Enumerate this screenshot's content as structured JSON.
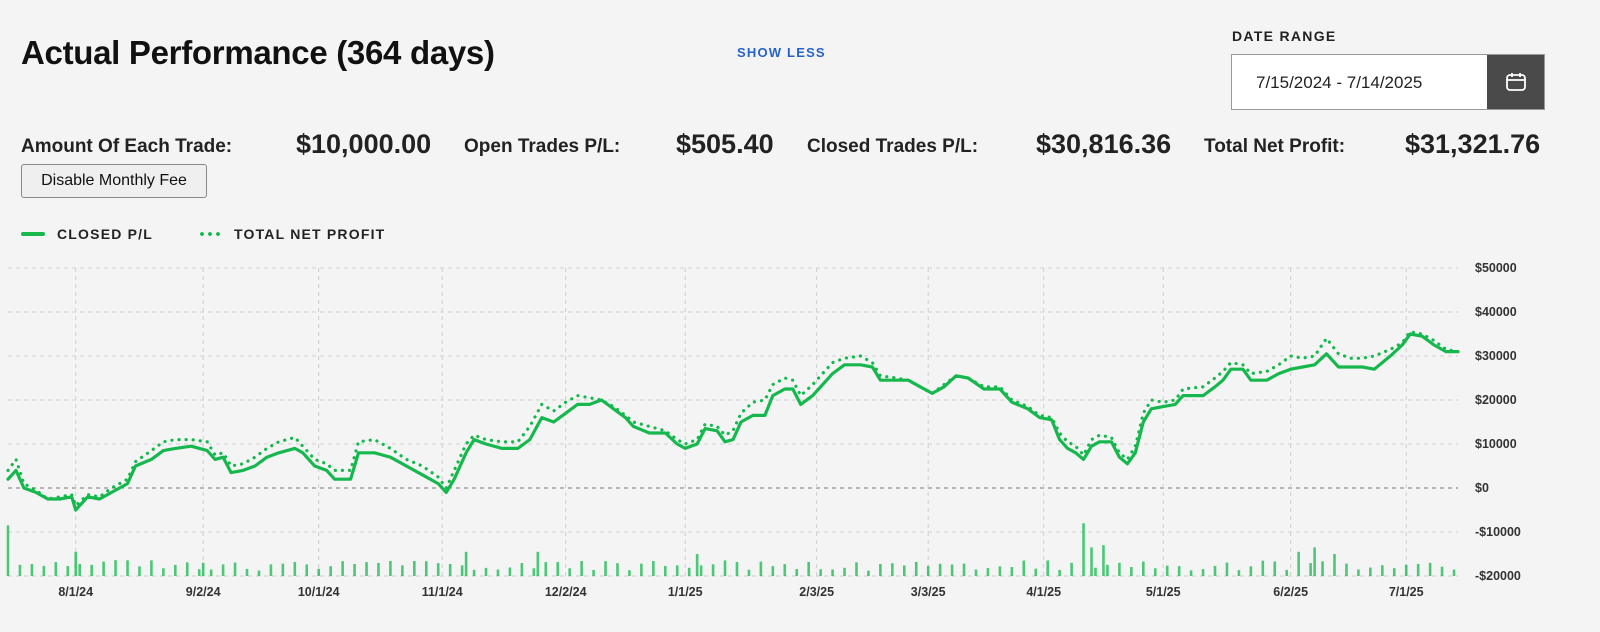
{
  "header": {
    "title": "Actual Performance (364 days)",
    "show_less": "SHOW LESS",
    "date_range_label": "DATE RANGE",
    "date_range_value": "7/15/2024 - 7/14/2025"
  },
  "stats": {
    "amount_label": "Amount Of Each Trade:",
    "amount_value": "$10,000.00",
    "open_label": "Open Trades P/L:",
    "open_value": "$505.40",
    "closed_label": "Closed Trades P/L:",
    "closed_value": "$30,816.36",
    "net_label": "Total Net Profit:",
    "net_value": "$31,321.76"
  },
  "fee_button": "Disable Monthly Fee",
  "colors": {
    "series": "#16b84e",
    "accent_blue": "#2563c9"
  },
  "chart_data": {
    "type": "line",
    "legend": [
      "CLOSED P/L",
      "TOTAL NET PROFIT"
    ],
    "legend_position": "top-left",
    "grid": true,
    "ylim": [
      -20000,
      50000
    ],
    "yticks": [
      50000,
      40000,
      30000,
      20000,
      10000,
      0,
      -10000,
      -20000
    ],
    "ytick_labels": [
      "$50000",
      "$40000",
      "$30000",
      "$20000",
      "$10000",
      "$0",
      "-$10000",
      "-$20000"
    ],
    "xlim_days": [
      0,
      364
    ],
    "xticks": [
      {
        "label": "8/1/24",
        "day": 17
      },
      {
        "label": "9/2/24",
        "day": 49
      },
      {
        "label": "10/1/24",
        "day": 78
      },
      {
        "label": "11/1/24",
        "day": 109
      },
      {
        "label": "12/2/24",
        "day": 140
      },
      {
        "label": "1/1/25",
        "day": 170
      },
      {
        "label": "2/3/25",
        "day": 203
      },
      {
        "label": "3/3/25",
        "day": 231
      },
      {
        "label": "4/1/25",
        "day": 260
      },
      {
        "label": "5/1/25",
        "day": 290
      },
      {
        "label": "6/2/25",
        "day": 322
      },
      {
        "label": "7/1/25",
        "day": 351
      }
    ],
    "series": [
      {
        "name": "CLOSED P/L",
        "style": "solid",
        "points": [
          [
            0,
            2000
          ],
          [
            2,
            4000
          ],
          [
            4,
            0
          ],
          [
            7,
            -1000
          ],
          [
            10,
            -2500
          ],
          [
            13,
            -2500
          ],
          [
            16,
            -2000
          ],
          [
            17,
            -5000
          ],
          [
            20,
            -2000
          ],
          [
            23,
            -2500
          ],
          [
            26,
            -1000
          ],
          [
            30,
            1000
          ],
          [
            32,
            5000
          ],
          [
            36,
            6500
          ],
          [
            39,
            8500
          ],
          [
            42,
            9000
          ],
          [
            46,
            9500
          ],
          [
            50,
            8500
          ],
          [
            52,
            6500
          ],
          [
            54,
            7000
          ],
          [
            56,
            3500
          ],
          [
            59,
            4000
          ],
          [
            62,
            5000
          ],
          [
            65,
            7000
          ],
          [
            68,
            8000
          ],
          [
            72,
            9000
          ],
          [
            74,
            8000
          ],
          [
            77,
            5000
          ],
          [
            80,
            4000
          ],
          [
            82,
            2000
          ],
          [
            86,
            2000
          ],
          [
            88,
            8000
          ],
          [
            92,
            8000
          ],
          [
            96,
            7000
          ],
          [
            100,
            5000
          ],
          [
            104,
            3000
          ],
          [
            108,
            1000
          ],
          [
            110,
            -1000
          ],
          [
            112,
            2000
          ],
          [
            115,
            8000
          ],
          [
            117,
            11000
          ],
          [
            120,
            10000
          ],
          [
            124,
            9000
          ],
          [
            128,
            9000
          ],
          [
            131,
            11000
          ],
          [
            134,
            16000
          ],
          [
            137,
            15000
          ],
          [
            140,
            17000
          ],
          [
            143,
            19000
          ],
          [
            146,
            19000
          ],
          [
            149,
            20000
          ],
          [
            152,
            18000
          ],
          [
            155,
            16000
          ],
          [
            157,
            14000
          ],
          [
            161,
            12500
          ],
          [
            165,
            12500
          ],
          [
            168,
            10000
          ],
          [
            170,
            9000
          ],
          [
            173,
            10000
          ],
          [
            175,
            13500
          ],
          [
            178,
            13000
          ],
          [
            180,
            10500
          ],
          [
            182,
            11000
          ],
          [
            184,
            15000
          ],
          [
            187,
            16500
          ],
          [
            190,
            16500
          ],
          [
            192,
            21000
          ],
          [
            195,
            22500
          ],
          [
            197,
            22500
          ],
          [
            199,
            19000
          ],
          [
            202,
            21000
          ],
          [
            205,
            24000
          ],
          [
            207,
            26000
          ],
          [
            210,
            28000
          ],
          [
            214,
            28000
          ],
          [
            217,
            27500
          ],
          [
            219,
            24500
          ],
          [
            223,
            24500
          ],
          [
            226,
            24500
          ],
          [
            229,
            23000
          ],
          [
            232,
            21500
          ],
          [
            235,
            23000
          ],
          [
            238,
            25500
          ],
          [
            241,
            25000
          ],
          [
            245,
            22500
          ],
          [
            249,
            22500
          ],
          [
            252,
            19500
          ],
          [
            256,
            18000
          ],
          [
            259,
            16000
          ],
          [
            262,
            15500
          ],
          [
            264,
            11000
          ],
          [
            266,
            9000
          ],
          [
            268,
            8000
          ],
          [
            270,
            6500
          ],
          [
            272,
            9500
          ],
          [
            274,
            10500
          ],
          [
            277,
            10500
          ],
          [
            279,
            7000
          ],
          [
            281,
            5500
          ],
          [
            283,
            8000
          ],
          [
            285,
            15000
          ],
          [
            287,
            18000
          ],
          [
            290,
            18500
          ],
          [
            293,
            19000
          ],
          [
            295,
            21000
          ],
          [
            300,
            21000
          ],
          [
            303,
            23000
          ],
          [
            305,
            24500
          ],
          [
            307,
            27000
          ],
          [
            310,
            27000
          ],
          [
            312,
            24500
          ],
          [
            316,
            24500
          ],
          [
            319,
            26000
          ],
          [
            322,
            27000
          ],
          [
            325,
            27500
          ],
          [
            328,
            28000
          ],
          [
            331,
            30500
          ],
          [
            334,
            27500
          ],
          [
            337,
            27500
          ],
          [
            340,
            27500
          ],
          [
            343,
            27000
          ],
          [
            347,
            30000
          ],
          [
            350,
            32500
          ],
          [
            352,
            35000
          ],
          [
            355,
            34500
          ],
          [
            358,
            32500
          ],
          [
            361,
            31000
          ],
          [
            364,
            31000
          ]
        ]
      },
      {
        "name": "TOTAL NET PROFIT",
        "style": "dotted",
        "points": [
          [
            0,
            4000
          ],
          [
            2,
            6500
          ],
          [
            4,
            1000
          ],
          [
            7,
            -500
          ],
          [
            10,
            -2500
          ],
          [
            13,
            -2000
          ],
          [
            16,
            -1500
          ],
          [
            17,
            -4000
          ],
          [
            20,
            -1500
          ],
          [
            23,
            -2000
          ],
          [
            26,
            0
          ],
          [
            30,
            2000
          ],
          [
            32,
            6000
          ],
          [
            36,
            8500
          ],
          [
            39,
            10500
          ],
          [
            42,
            11000
          ],
          [
            46,
            11000
          ],
          [
            50,
            10500
          ],
          [
            52,
            7500
          ],
          [
            54,
            8000
          ],
          [
            56,
            5000
          ],
          [
            59,
            5500
          ],
          [
            62,
            7000
          ],
          [
            65,
            9000
          ],
          [
            68,
            10500
          ],
          [
            72,
            11500
          ],
          [
            74,
            9500
          ],
          [
            77,
            6500
          ],
          [
            80,
            5500
          ],
          [
            82,
            4000
          ],
          [
            86,
            4000
          ],
          [
            88,
            10500
          ],
          [
            92,
            11000
          ],
          [
            96,
            9000
          ],
          [
            100,
            6500
          ],
          [
            104,
            5000
          ],
          [
            108,
            2500
          ],
          [
            110,
            0
          ],
          [
            112,
            4000
          ],
          [
            115,
            10000
          ],
          [
            117,
            12000
          ],
          [
            120,
            11000
          ],
          [
            124,
            10500
          ],
          [
            128,
            10500
          ],
          [
            131,
            14000
          ],
          [
            134,
            19000
          ],
          [
            137,
            17500
          ],
          [
            140,
            19500
          ],
          [
            143,
            21000
          ],
          [
            146,
            20500
          ],
          [
            149,
            20000
          ],
          [
            152,
            18500
          ],
          [
            155,
            16500
          ],
          [
            157,
            15000
          ],
          [
            161,
            14000
          ],
          [
            165,
            13000
          ],
          [
            168,
            11000
          ],
          [
            170,
            10000
          ],
          [
            173,
            11000
          ],
          [
            175,
            14500
          ],
          [
            178,
            14000
          ],
          [
            180,
            12000
          ],
          [
            182,
            13000
          ],
          [
            184,
            17000
          ],
          [
            187,
            19500
          ],
          [
            190,
            20000
          ],
          [
            192,
            23500
          ],
          [
            195,
            25000
          ],
          [
            197,
            24500
          ],
          [
            199,
            21000
          ],
          [
            202,
            23500
          ],
          [
            205,
            26500
          ],
          [
            207,
            28500
          ],
          [
            210,
            29500
          ],
          [
            214,
            30000
          ],
          [
            217,
            28500
          ],
          [
            219,
            25500
          ],
          [
            223,
            25000
          ],
          [
            226,
            24500
          ],
          [
            229,
            23000
          ],
          [
            232,
            21500
          ],
          [
            235,
            23500
          ],
          [
            238,
            25500
          ],
          [
            241,
            25000
          ],
          [
            245,
            23000
          ],
          [
            249,
            23000
          ],
          [
            252,
            20000
          ],
          [
            256,
            18500
          ],
          [
            259,
            16500
          ],
          [
            262,
            16000
          ],
          [
            264,
            12500
          ],
          [
            266,
            10500
          ],
          [
            268,
            9500
          ],
          [
            270,
            7500
          ],
          [
            272,
            11000
          ],
          [
            274,
            12000
          ],
          [
            277,
            11500
          ],
          [
            279,
            8000
          ],
          [
            281,
            6500
          ],
          [
            283,
            9500
          ],
          [
            285,
            17000
          ],
          [
            287,
            20000
          ],
          [
            290,
            19500
          ],
          [
            293,
            20000
          ],
          [
            295,
            22500
          ],
          [
            300,
            23000
          ],
          [
            303,
            25000
          ],
          [
            305,
            26500
          ],
          [
            307,
            28500
          ],
          [
            310,
            28000
          ],
          [
            312,
            26000
          ],
          [
            316,
            26500
          ],
          [
            319,
            28000
          ],
          [
            322,
            30000
          ],
          [
            325,
            29500
          ],
          [
            328,
            30000
          ],
          [
            331,
            34000
          ],
          [
            334,
            30500
          ],
          [
            337,
            29500
          ],
          [
            340,
            29500
          ],
          [
            343,
            30000
          ],
          [
            347,
            31500
          ],
          [
            350,
            33000
          ],
          [
            352,
            35500
          ],
          [
            355,
            35000
          ],
          [
            358,
            33500
          ],
          [
            361,
            31500
          ],
          [
            364,
            31000
          ]
        ]
      }
    ],
    "volume_bars": [
      {
        "day": 0,
        "value": -8500
      },
      {
        "day": 17,
        "value": -14500
      },
      {
        "day": 49,
        "value": -17000
      },
      {
        "day": 115,
        "value": -14500
      },
      {
        "day": 133,
        "value": -14500
      },
      {
        "day": 173,
        "value": -15000
      },
      {
        "day": 270,
        "value": -8000
      },
      {
        "day": 272,
        "value": -13500
      },
      {
        "day": 275,
        "value": -13000
      },
      {
        "day": 324,
        "value": -14500
      },
      {
        "day": 328,
        "value": -13500
      },
      {
        "day": 333,
        "value": -15000
      }
    ]
  }
}
